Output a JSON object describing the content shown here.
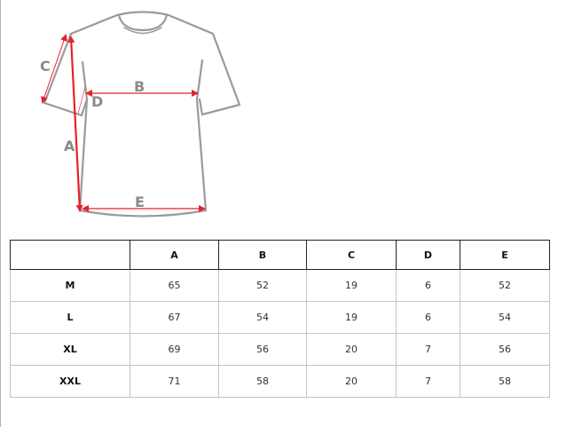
{
  "diagram": {
    "labels": [
      "A",
      "B",
      "C",
      "D",
      "E"
    ],
    "colors": {
      "outline": "#9a9a9a",
      "arrow": "#e8202a",
      "label": "#8a8a8a"
    }
  },
  "table": {
    "headers": [
      "",
      "A",
      "B",
      "C",
      "D",
      "E"
    ],
    "rows": [
      [
        "M",
        "65",
        "52",
        "19",
        "6",
        "52"
      ],
      [
        "L",
        "67",
        "54",
        "19",
        "6",
        "54"
      ],
      [
        "XL",
        "69",
        "56",
        "20",
        "7",
        "56"
      ],
      [
        "XXL",
        "71",
        "58",
        "20",
        "7",
        "58"
      ]
    ]
  }
}
